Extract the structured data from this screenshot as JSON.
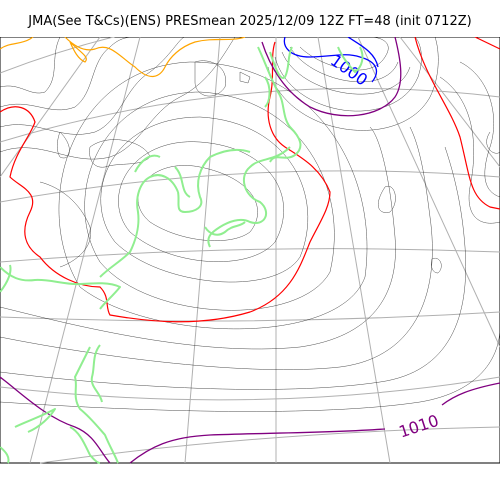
{
  "figure": {
    "title": "JMA(See T&Cs)(ENS) PRESmean 2025/12/09 12Z FT=48 (init 0712Z)"
  },
  "contours": {
    "label_1000": "1000",
    "label_1010": "1010"
  },
  "colors": {
    "isobar": "#000000",
    "red_isobar": "#ff0000",
    "blue_isobar": "#0000ff",
    "purple_isobar": "#800080",
    "orange_isobar": "#ffa500",
    "coastline": "#90ee90",
    "graticule": "#b0b0b0"
  }
}
